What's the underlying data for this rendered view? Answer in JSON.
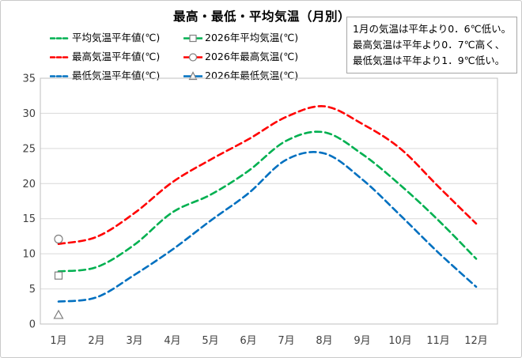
{
  "title": "最高・最低・平均気温（月別）",
  "annotation": {
    "line1": "1月の気温は平年より0．6℃低い。",
    "line2": "最高気温は平年より0．7℃高く、",
    "line3": "最低気温は平年より1．9℃低い。"
  },
  "legend": {
    "items": [
      {
        "label": "平均気温平年値(℃)",
        "color": "#00B050",
        "style": "dashed"
      },
      {
        "label": "2026年平均気温(℃)",
        "color": "#00B050",
        "style": "marker",
        "marker": "square"
      },
      {
        "label": "最高気温平年値(℃)",
        "color": "#FF0000",
        "style": "dashed"
      },
      {
        "label": "2026年最高気温(℃)",
        "color": "#FF0000",
        "style": "marker",
        "marker": "circle"
      },
      {
        "label": "最低気温平年値(℃)",
        "color": "#0070C0",
        "style": "dashed"
      },
      {
        "label": "2026年最低気温(℃)",
        "color": "#0070C0",
        "style": "marker",
        "marker": "triangle"
      }
    ]
  },
  "chart_data": {
    "type": "line",
    "categories": [
      "1月",
      "2月",
      "3月",
      "4月",
      "5月",
      "6月",
      "7月",
      "8月",
      "9月",
      "10月",
      "11月",
      "12月"
    ],
    "ylim": [
      0,
      35
    ],
    "yticks": [
      0,
      5,
      10,
      15,
      20,
      25,
      30,
      35
    ],
    "grid": true,
    "legend_position": "top-left",
    "colors": {
      "average": "#00B050",
      "maximum": "#FF0000",
      "minimum": "#0070C0",
      "marker_outline": "#7F7F7F",
      "gridline": "#D9D9D9",
      "plot_border": "#BFBFBF",
      "axis_text": "#404040"
    },
    "series": [
      {
        "name": "平均気温平年値(℃)",
        "color": "#00B050",
        "style": "dashed",
        "values": [
          7.5,
          8.1,
          11.3,
          15.9,
          18.4,
          21.8,
          26.1,
          27.3,
          24.2,
          19.8,
          14.8,
          9.3
        ]
      },
      {
        "name": "最高気温平年値(℃)",
        "color": "#FF0000",
        "style": "dashed",
        "values": [
          11.4,
          12.4,
          15.8,
          20.2,
          23.4,
          26.3,
          29.5,
          31.0,
          28.5,
          25.0,
          19.6,
          14.3
        ]
      },
      {
        "name": "最低気温平年値(℃)",
        "color": "#0070C0",
        "style": "dashed",
        "values": [
          3.2,
          3.8,
          7.0,
          10.6,
          14.7,
          18.6,
          23.4,
          24.3,
          20.6,
          15.5,
          10.2,
          5.3
        ]
      },
      {
        "name": "2026年平均気温(℃)",
        "color": "#00B050",
        "style": "marker",
        "marker": "square",
        "values": [
          6.9,
          null,
          null,
          null,
          null,
          null,
          null,
          null,
          null,
          null,
          null,
          null
        ]
      },
      {
        "name": "2026年最高気温(℃)",
        "color": "#FF0000",
        "style": "marker",
        "marker": "circle",
        "values": [
          12.1,
          null,
          null,
          null,
          null,
          null,
          null,
          null,
          null,
          null,
          null,
          null
        ]
      },
      {
        "name": "2026年最低気温(℃)",
        "color": "#0070C0",
        "style": "marker",
        "marker": "triangle",
        "values": [
          1.3,
          null,
          null,
          null,
          null,
          null,
          null,
          null,
          null,
          null,
          null,
          null
        ]
      }
    ]
  }
}
